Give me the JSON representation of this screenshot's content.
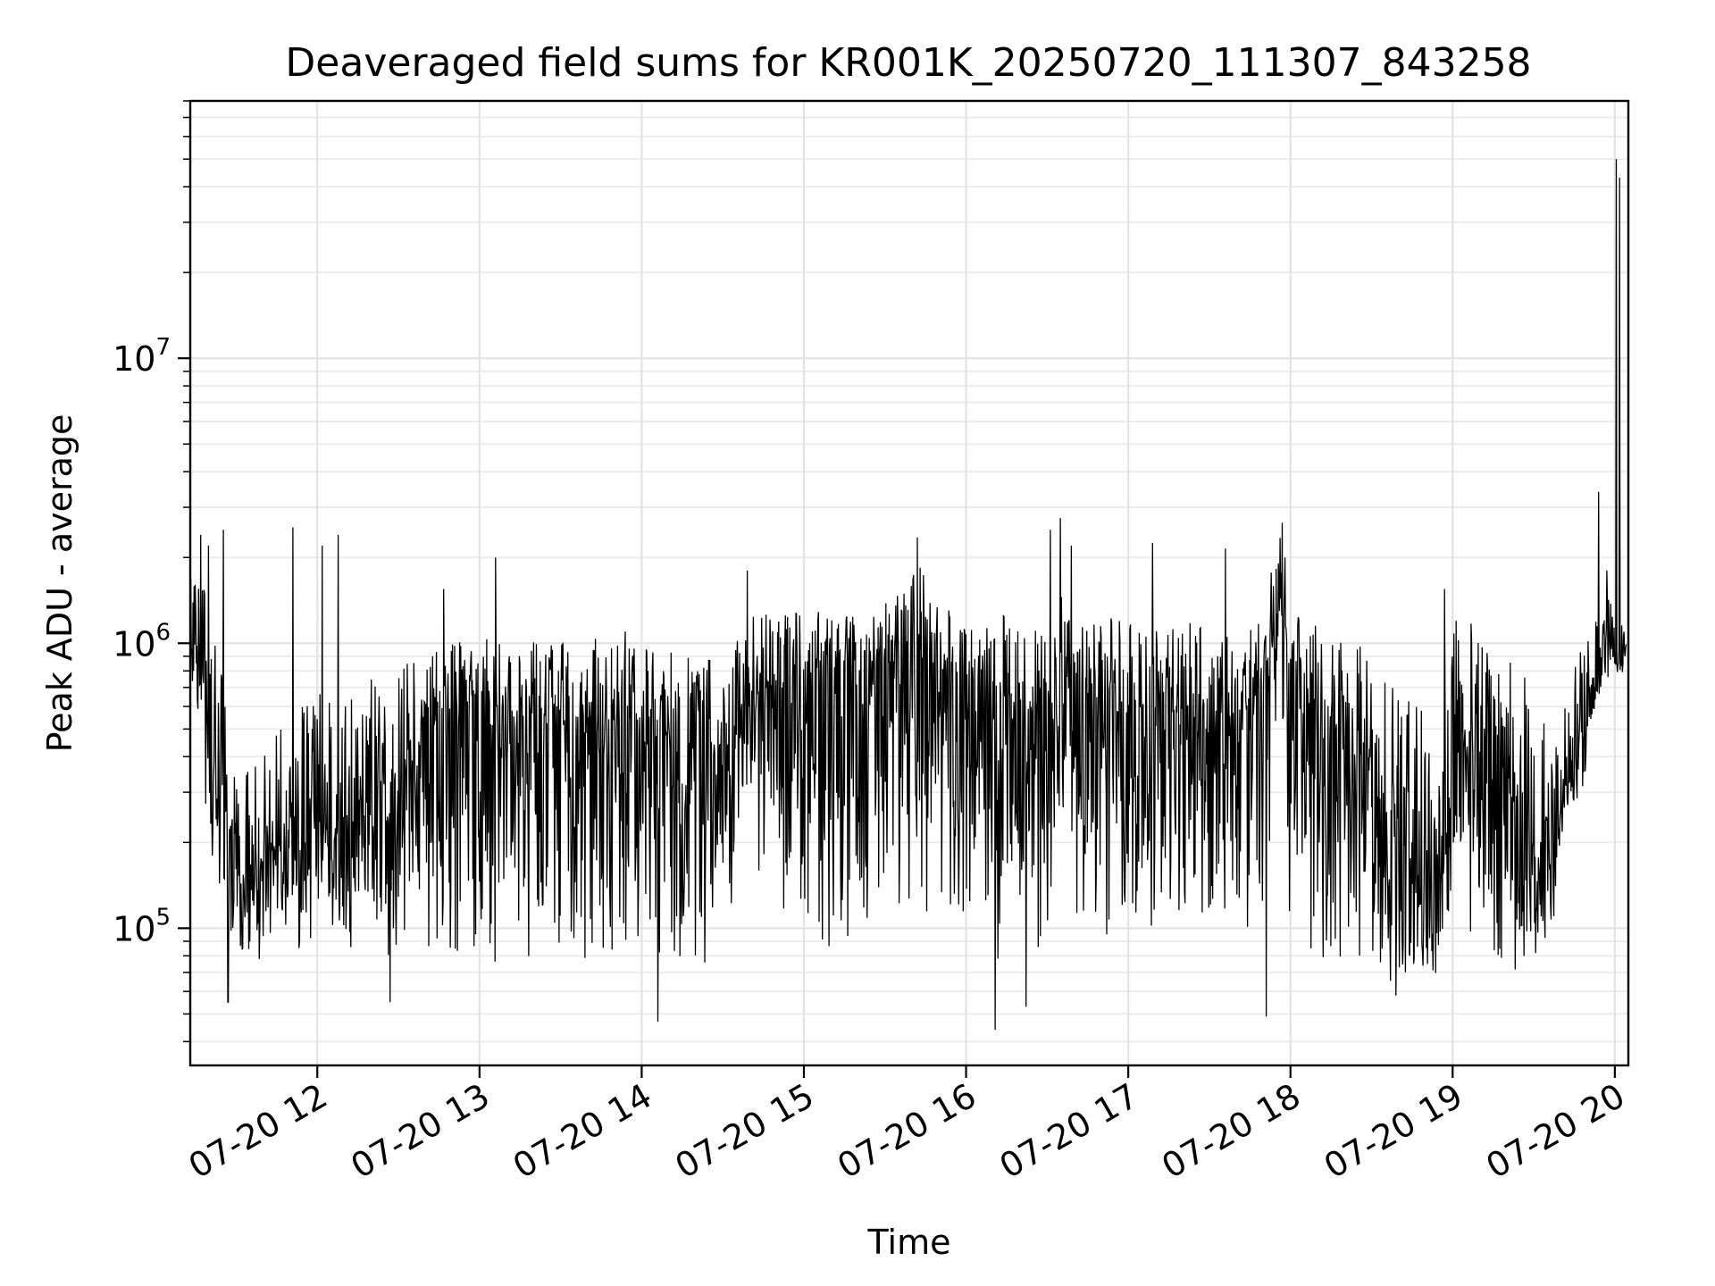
{
  "chart_data": {
    "type": "line",
    "title": "Deaveraged field sums for KR001K_20250720_111307_843258",
    "xlabel": "Time",
    "ylabel": "Peak ADU - average",
    "y_scale": "log",
    "ylim": [
      33000,
      80000000
    ],
    "xlim": [
      "07-20 11:13",
      "07-20 20:05"
    ],
    "grid": true,
    "x_ticks": [
      "07-20 12",
      "07-20 13",
      "07-20 14",
      "07-20 15",
      "07-20 16",
      "07-20 17",
      "07-20 18",
      "07-20 19",
      "07-20 20"
    ],
    "x_tick_hours": [
      12,
      13,
      14,
      15,
      16,
      17,
      18,
      19,
      20
    ],
    "y_ticks": [
      {
        "value": 100000,
        "base": "10",
        "exp": "5"
      },
      {
        "value": 1000000,
        "base": "10",
        "exp": "6"
      },
      {
        "value": 10000000,
        "base": "10",
        "exp": "7"
      }
    ],
    "line_color": "#000000",
    "series": [
      {
        "x_hours": [
          11.22,
          11.28,
          11.35,
          11.42,
          11.5,
          11.6,
          11.7,
          11.8,
          11.9,
          12.0,
          12.1,
          12.2,
          12.3,
          12.4,
          12.5,
          12.6,
          12.7,
          12.8,
          12.9,
          13.0,
          13.2,
          13.4,
          13.6,
          13.8,
          14.0,
          14.2,
          14.4,
          14.55,
          14.6,
          14.7,
          14.8,
          15.0,
          15.2,
          15.4,
          15.6,
          15.7,
          15.8,
          16.0,
          16.2,
          16.4,
          16.5,
          16.6,
          16.8,
          17.0,
          17.2,
          17.4,
          17.6,
          17.8,
          17.95,
          18.0,
          18.2,
          18.4,
          18.6,
          18.8,
          18.9,
          19.0,
          19.2,
          19.4,
          19.5,
          19.6,
          19.7,
          19.8,
          19.9,
          19.95,
          20.0,
          20.03,
          20.05,
          20.07
        ],
        "median": [
          1200000,
          1000000,
          500000,
          280000,
          170000,
          160000,
          180000,
          200000,
          220000,
          250000,
          220000,
          240000,
          280000,
          320000,
          300000,
          400000,
          520000,
          560000,
          600000,
          600000,
          580000,
          560000,
          550000,
          520000,
          500000,
          460000,
          420000,
          340000,
          600000,
          650000,
          700000,
          780000,
          800000,
          790000,
          820000,
          900000,
          820000,
          780000,
          620000,
          560000,
          620000,
          700000,
          650000,
          600000,
          580000,
          560000,
          540000,
          640000,
          1400000,
          700000,
          560000,
          400000,
          250000,
          140000,
          120000,
          380000,
          440000,
          300000,
          200000,
          190000,
          360000,
          520000,
          900000,
          1000000,
          900000,
          850000,
          900000,
          1000000
        ],
        "low": [
          800000,
          350000,
          150000,
          90000,
          75000,
          75000,
          80000,
          80000,
          80000,
          90000,
          75000,
          70000,
          80000,
          75000,
          68000,
          65000,
          70000,
          75000,
          80000,
          75000,
          70000,
          70000,
          70000,
          70000,
          68000,
          65000,
          70000,
          90000,
          250000,
          150000,
          80000,
          70000,
          75000,
          80000,
          100000,
          120000,
          80000,
          80000,
          60000,
          70000,
          75000,
          100000,
          100000,
          80000,
          90000,
          110000,
          95000,
          80000,
          400000,
          80000,
          70000,
          75000,
          65000,
          60000,
          62000,
          90000,
          80000,
          70000,
          70000,
          80000,
          200000,
          260000,
          600000,
          700000,
          700000,
          750000,
          800000,
          900000
        ],
        "high": [
          1800000,
          2300000,
          1500000,
          700000,
          450000,
          380000,
          450000,
          550000,
          600000,
          750000,
          600000,
          650000,
          750000,
          800000,
          850000,
          900000,
          1000000,
          1000000,
          1050000,
          1050000,
          1050000,
          1050000,
          1050000,
          1050000,
          1000000,
          950000,
          900000,
          800000,
          1200000,
          1250000,
          1300000,
          1300000,
          1300000,
          1300000,
          1500000,
          2000000,
          1400000,
          1300000,
          1300000,
          1100000,
          1300000,
          1500000,
          1300000,
          1200000,
          1100000,
          1200000,
          1100000,
          1200000,
          2600000,
          1400000,
          1100000,
          1000000,
          900000,
          600000,
          500000,
          1300000,
          1100000,
          900000,
          700000,
          450000,
          650000,
          1000000,
          1400000,
          1600000,
          1300000,
          1200000,
          1300000,
          1500000
        ]
      }
    ],
    "spikes": [
      {
        "x_hour": 11.28,
        "y": 2400000
      },
      {
        "x_hour": 11.33,
        "y": 2200000
      },
      {
        "x_hour": 11.42,
        "y": 2500000
      },
      {
        "x_hour": 11.45,
        "y": 55000
      },
      {
        "x_hour": 11.85,
        "y": 2550000
      },
      {
        "x_hour": 12.03,
        "y": 2200000
      },
      {
        "x_hour": 12.13,
        "y": 2400000
      },
      {
        "x_hour": 12.45,
        "y": 55000
      },
      {
        "x_hour": 12.78,
        "y": 1550000
      },
      {
        "x_hour": 13.1,
        "y": 2000000
      },
      {
        "x_hour": 13.9,
        "y": 1100000
      },
      {
        "x_hour": 14.1,
        "y": 47000
      },
      {
        "x_hour": 14.65,
        "y": 1800000
      },
      {
        "x_hour": 15.7,
        "y": 2350000
      },
      {
        "x_hour": 16.18,
        "y": 44000
      },
      {
        "x_hour": 16.37,
        "y": 53000
      },
      {
        "x_hour": 16.52,
        "y": 2500000
      },
      {
        "x_hour": 16.58,
        "y": 2750000
      },
      {
        "x_hour": 16.65,
        "y": 2200000
      },
      {
        "x_hour": 17.15,
        "y": 2250000
      },
      {
        "x_hour": 17.6,
        "y": 2150000
      },
      {
        "x_hour": 17.85,
        "y": 49000
      },
      {
        "x_hour": 17.95,
        "y": 2650000
      },
      {
        "x_hour": 18.65,
        "y": 58000
      },
      {
        "x_hour": 18.95,
        "y": 1550000
      },
      {
        "x_hour": 19.9,
        "y": 3400000
      },
      {
        "x_hour": 19.95,
        "y": 1800000
      },
      {
        "x_hour": 20.01,
        "y": 50000000
      },
      {
        "x_hour": 20.03,
        "y": 43000000
      }
    ]
  }
}
